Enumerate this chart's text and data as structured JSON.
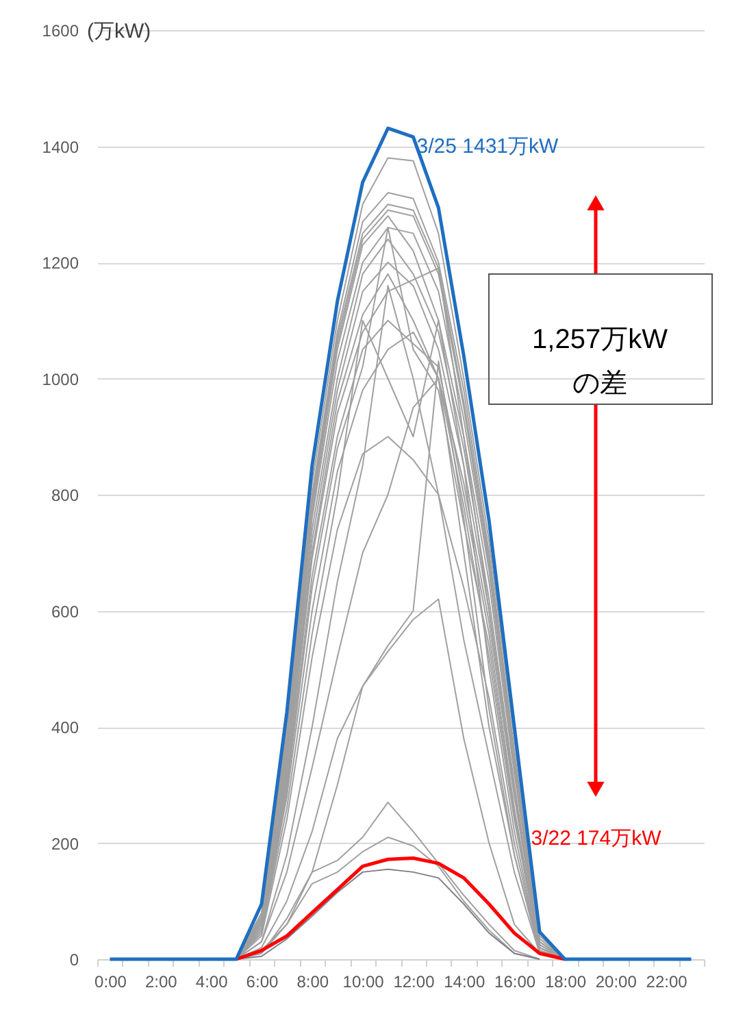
{
  "chart_data": {
    "type": "line",
    "categories": [
      "0:00",
      null,
      "2:00",
      null,
      "4:00",
      null,
      "6:00",
      null,
      "8:00",
      null,
      "10:00",
      null,
      "12:00",
      null,
      "14:00",
      null,
      "16:00",
      null,
      "18:00",
      null,
      "20:00",
      null,
      "22:00",
      null
    ],
    "ylabel": "(万kW)",
    "ylim": [
      0,
      1600
    ],
    "yticks": [
      0,
      200,
      400,
      600,
      800,
      1000,
      1200,
      1400,
      1600
    ],
    "grid": "y",
    "annotations": [
      "1,257万kW\nの差"
    ],
    "series": [
      {
        "color": "#a0a0a0",
        "values": [
          null,
          null,
          null,
          null,
          null,
          0,
          80,
          400,
          820,
          1100,
          1300,
          1380,
          1375,
          1250,
          1000,
          720,
          380,
          40,
          0,
          null,
          null,
          null,
          null,
          null
        ]
      },
      {
        "color": "#a0a0a0",
        "values": [
          null,
          null,
          null,
          null,
          null,
          0,
          75,
          390,
          800,
          1080,
          1270,
          1320,
          1310,
          1200,
          980,
          700,
          360,
          35,
          0,
          null,
          null,
          null,
          null,
          null
        ]
      },
      {
        "color": "#a0a0a0",
        "values": [
          null,
          null,
          null,
          null,
          null,
          0,
          70,
          380,
          790,
          1070,
          1250,
          1300,
          1290,
          1190,
          960,
          690,
          350,
          30,
          0,
          null,
          null,
          null,
          null,
          null
        ]
      },
      {
        "color": "#a0a0a0",
        "values": [
          null,
          null,
          null,
          null,
          null,
          0,
          70,
          370,
          780,
          1060,
          1240,
          1290,
          1280,
          1180,
          950,
          680,
          340,
          30,
          0,
          null,
          null,
          null,
          null,
          null
        ]
      },
      {
        "color": "#a0a0a0",
        "values": [
          null,
          null,
          null,
          null,
          null,
          0,
          65,
          360,
          770,
          1050,
          1230,
          1280,
          1220,
          1100,
          900,
          650,
          320,
          25,
          0,
          null,
          null,
          null,
          null,
          null
        ]
      },
      {
        "color": "#a0a0a0",
        "values": [
          null,
          null,
          null,
          null,
          null,
          0,
          65,
          350,
          760,
          1030,
          1200,
          1260,
          1250,
          1150,
          930,
          670,
          330,
          25,
          0,
          null,
          null,
          null,
          null,
          null
        ]
      },
      {
        "color": "#a0a0a0",
        "values": [
          null,
          null,
          null,
          null,
          null,
          0,
          60,
          340,
          740,
          1000,
          1180,
          1240,
          1180,
          1080,
          880,
          620,
          300,
          20,
          0,
          null,
          null,
          null,
          null,
          null
        ]
      },
      {
        "color": "#a0a0a0",
        "values": [
          null,
          null,
          null,
          null,
          null,
          0,
          60,
          330,
          720,
          980,
          1150,
          1200,
          1160,
          1050,
          850,
          600,
          290,
          20,
          0,
          null,
          null,
          null,
          null,
          null
        ]
      },
      {
        "color": "#a0a0a0",
        "values": [
          null,
          null,
          null,
          null,
          null,
          0,
          55,
          320,
          700,
          960,
          1110,
          1180,
          1100,
          1000,
          820,
          580,
          280,
          20,
          0,
          null,
          null,
          null,
          null,
          null
        ]
      },
      {
        "color": "#a0a0a0",
        "values": [
          null,
          null,
          null,
          null,
          null,
          0,
          55,
          310,
          690,
          940,
          1080,
          1150,
          1170,
          1190,
          900,
          600,
          290,
          20,
          0,
          null,
          null,
          null,
          null,
          null
        ]
      },
      {
        "color": "#a0a0a0",
        "values": [
          null,
          null,
          null,
          null,
          null,
          0,
          50,
          300,
          660,
          900,
          1050,
          1100,
          1060,
          1020,
          800,
          560,
          260,
          15,
          0,
          null,
          null,
          null,
          null,
          null
        ]
      },
      {
        "color": "#a0a0a0",
        "values": [
          null,
          null,
          null,
          null,
          null,
          0,
          50,
          290,
          640,
          880,
          1020,
          1260,
          1050,
          980,
          750,
          540,
          250,
          15,
          0,
          null,
          null,
          null,
          null,
          null
        ]
      },
      {
        "color": "#a0a0a0",
        "values": [
          null,
          null,
          null,
          null,
          null,
          0,
          45,
          280,
          600,
          840,
          980,
          1050,
          1080,
          1000,
          780,
          520,
          240,
          15,
          0,
          null,
          null,
          null,
          null,
          null
        ]
      },
      {
        "color": "#a0a0a0",
        "values": [
          null,
          null,
          null,
          null,
          null,
          0,
          45,
          260,
          560,
          800,
          1100,
          1000,
          900,
          1100,
          850,
          500,
          220,
          10,
          0,
          null,
          null,
          null,
          null,
          null
        ]
      },
      {
        "color": "#a0a0a0",
        "values": [
          null,
          null,
          null,
          null,
          null,
          0,
          40,
          240,
          520,
          740,
          870,
          900,
          860,
          800,
          640,
          450,
          200,
          10,
          0,
          null,
          null,
          null,
          null,
          null
        ]
      },
      {
        "color": "#a0a0a0",
        "values": [
          null,
          null,
          null,
          null,
          null,
          0,
          30,
          180,
          400,
          650,
          850,
          1160,
          1000,
          800,
          550,
          350,
          150,
          10,
          0,
          null,
          null,
          null,
          null,
          null
        ]
      },
      {
        "color": "#a0a0a0",
        "values": [
          null,
          null,
          null,
          null,
          null,
          0,
          30,
          150,
          330,
          520,
          700,
          800,
          950,
          1000,
          700,
          400,
          180,
          10,
          0,
          null,
          null,
          null,
          null,
          null
        ]
      },
      {
        "color": "#a0a0a0",
        "values": [
          null,
          null,
          null,
          null,
          null,
          0,
          20,
          100,
          220,
          380,
          470,
          540,
          600,
          1030,
          760,
          430,
          180,
          10,
          0,
          null,
          null,
          null,
          null,
          null
        ]
      },
      {
        "color": "#a0a0a0",
        "values": [
          null,
          null,
          null,
          null,
          null,
          0,
          15,
          60,
          150,
          300,
          470,
          530,
          585,
          620,
          380,
          200,
          60,
          10,
          0,
          null,
          null,
          null,
          null,
          null
        ]
      },
      {
        "color": "#a0a0a0",
        "values": [
          null,
          null,
          null,
          null,
          null,
          0,
          10,
          70,
          150,
          170,
          210,
          270,
          220,
          165,
          110,
          60,
          15,
          0,
          null,
          null,
          null,
          null,
          null,
          null
        ]
      },
      {
        "color": "#a0a0a0",
        "values": [
          null,
          null,
          null,
          null,
          null,
          0,
          10,
          60,
          130,
          150,
          185,
          210,
          195,
          160,
          100,
          50,
          10,
          0,
          null,
          null,
          null,
          null,
          null,
          null
        ]
      },
      {
        "color": "#7f7f8a",
        "values": [
          null,
          null,
          null,
          null,
          null,
          0,
          5,
          35,
          74,
          115,
          150,
          155,
          150,
          140,
          95,
          45,
          10,
          0,
          null,
          null,
          null,
          null,
          null,
          null
        ]
      },
      {
        "name": "3/22  174万kW",
        "color": "#ff0000",
        "values": [
          null,
          null,
          null,
          null,
          null,
          0,
          15,
          40,
          80,
          120,
          160,
          172,
          174,
          165,
          140,
          95,
          45,
          10,
          0,
          null,
          null,
          null,
          null,
          null
        ]
      },
      {
        "name": "3/25  1431万kW",
        "color": "#1f6fc0",
        "values": [
          0,
          0,
          0,
          0,
          0,
          0,
          95,
          425,
          850,
          1133,
          1338,
          1431,
          1416,
          1294,
          1039,
          755,
          400,
          47,
          0,
          0,
          0,
          0,
          0,
          0
        ]
      }
    ]
  }
}
